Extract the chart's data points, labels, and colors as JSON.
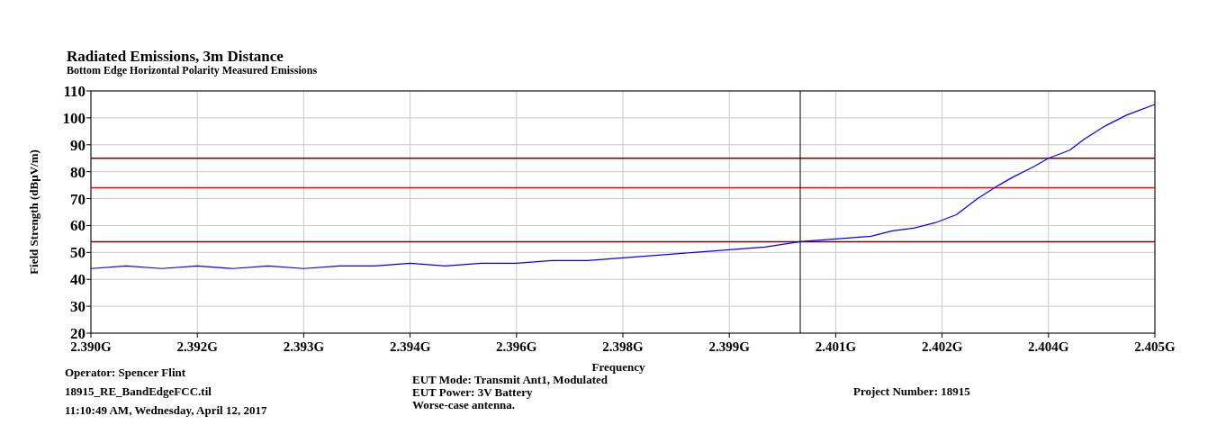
{
  "chart_data": {
    "type": "line",
    "title": "Radiated Emissions, 3m Distance",
    "subtitle": "Bottom Edge Horizontal Polarity Measured Emissions",
    "xlabel": "Frequency",
    "ylabel": "Field Strength (dBµV/m)",
    "xlim": [
      2.39,
      2.405
    ],
    "ylim": [
      20,
      110
    ],
    "xticks": [
      {
        "value": 2.39,
        "label": "2.390G"
      },
      {
        "value": 2.3915,
        "label": "2.392G"
      },
      {
        "value": 2.393,
        "label": "2.393G"
      },
      {
        "value": 2.3945,
        "label": "2.394G"
      },
      {
        "value": 2.396,
        "label": "2.396G"
      },
      {
        "value": 2.3975,
        "label": "2.398G"
      },
      {
        "value": 2.399,
        "label": "2.399G"
      },
      {
        "value": 2.4005,
        "label": "2.401G"
      },
      {
        "value": 2.402,
        "label": "2.402G"
      },
      {
        "value": 2.4035,
        "label": "2.404G"
      },
      {
        "value": 2.405,
        "label": "2.405G"
      }
    ],
    "yticks": [
      20,
      30,
      40,
      50,
      60,
      70,
      80,
      90,
      100,
      110
    ],
    "grid": true,
    "marker": "none",
    "line_style": "solid",
    "series": [
      {
        "color": "#0000ff",
        "x": [
          2.39,
          2.3905,
          2.391,
          2.3915,
          2.392,
          2.3925,
          2.393,
          2.3935,
          2.394,
          2.3945,
          2.395,
          2.3955,
          2.396,
          2.3965,
          2.397,
          2.3975,
          2.398,
          2.3985,
          2.399,
          2.3995,
          2.4,
          2.4005,
          2.401,
          2.4013,
          2.4016,
          2.4019,
          2.402,
          2.4022,
          2.4025,
          2.4028,
          2.403,
          2.4033,
          2.4035,
          2.4038,
          2.404,
          2.4043,
          2.4046,
          2.4048,
          2.405
        ],
        "values": [
          44,
          45,
          44,
          45,
          44,
          45,
          44,
          45,
          45,
          46,
          45,
          46,
          46,
          47,
          47,
          48,
          49,
          50,
          51,
          52,
          54,
          55,
          56,
          58,
          59,
          61,
          62,
          64,
          70,
          75,
          78,
          82,
          85,
          88,
          92,
          97,
          101,
          103,
          105
        ]
      }
    ],
    "ref_lines": [
      {
        "axis": "y",
        "value": 85,
        "color": "#800000"
      },
      {
        "axis": "y",
        "value": 74,
        "color": "#ff0000"
      },
      {
        "axis": "y",
        "value": 54,
        "color": "#800000"
      },
      {
        "axis": "x",
        "value": 2.4,
        "color": "#000000"
      }
    ],
    "annotations": [
      "Operator: Spencer Flint",
      "18915_RE_BandEdgeFCC.til",
      "11:10:49 AM, Wednesday, April 12, 2017",
      "EUT Mode: Transmit Ant1, Modulated",
      "EUT Power: 3V Battery",
      "Worse-case antenna.",
      "Project Number: 18915"
    ]
  }
}
